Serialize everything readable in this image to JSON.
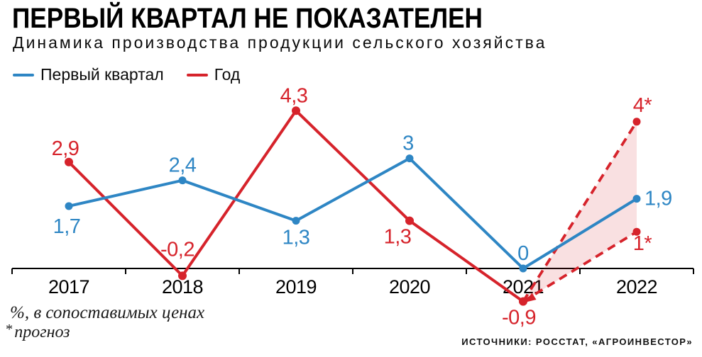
{
  "header": {
    "title": "ПЕРВЫЙ КВАРТАЛ НЕ ПОКАЗАТЕЛЕН",
    "subtitle": "Динамика производства продукции сельского хозяйства"
  },
  "legend": [
    {
      "label": "Первый квартал",
      "color": "#2e86c4"
    },
    {
      "label": "Год",
      "color": "#d6232b"
    }
  ],
  "chart_data": {
    "type": "line",
    "title": "Динамика производства продукции сельского хозяйства",
    "categories": [
      "2017",
      "2018",
      "2019",
      "2020",
      "2021",
      "2022"
    ],
    "ylim": [
      -1.5,
      5
    ],
    "grid": false,
    "legend_position": "top-left",
    "series": [
      {
        "name": "Первый квартал",
        "color": "#2e86c4",
        "style": "solid",
        "values": [
          1.7,
          2.4,
          1.3,
          3,
          0,
          1.9
        ],
        "labels": [
          "1,7",
          "2,4",
          "1,3",
          "3",
          "0",
          "1,9"
        ]
      },
      {
        "name": "Год",
        "color": "#d6232b",
        "style": "solid",
        "values": [
          2.9,
          -0.2,
          4.3,
          1.3,
          -0.9,
          null
        ],
        "labels": [
          "2,9",
          "-0,2",
          "4,3",
          "1,3",
          "-0,9",
          null
        ]
      }
    ],
    "forecast": {
      "series": "Год",
      "from_category": "2021",
      "from_value": -0.9,
      "to_category": "2022",
      "high": 4,
      "low": 1,
      "high_label": "4*",
      "low_label": "1*",
      "style": "dashed",
      "fill_color": "#d6232b",
      "fill_opacity": 0.14
    },
    "unit_note": "%, в сопоставимых ценах"
  },
  "footnotes": {
    "units": "%, в сопоставимых ценах",
    "forecast_marker": "*",
    "forecast_text": "прогноз"
  },
  "source": "ИСТОЧНИКИ: РОССТАТ, «АГРОИНВЕСТОР»"
}
